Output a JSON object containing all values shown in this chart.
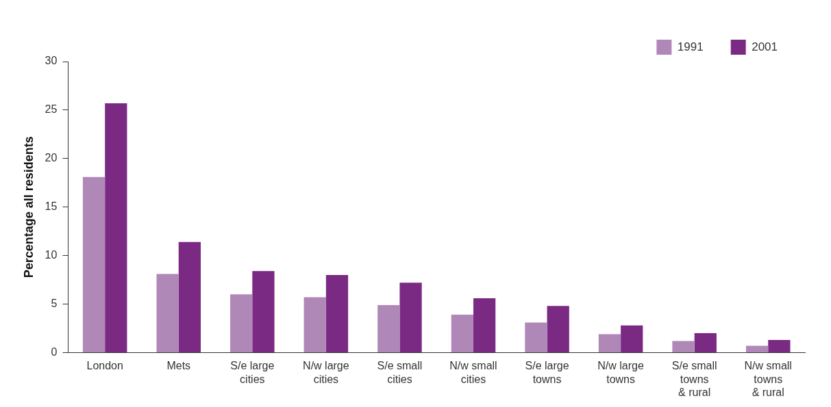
{
  "chart_data": {
    "type": "bar",
    "ylabel": "Percentage all residents",
    "categories": [
      "London",
      "Mets",
      "S/e large cities",
      "N/w large cities",
      "S/e small cities",
      "N/w small cities",
      "S/e large towns",
      "N/w large towns",
      "S/e small towns & rural",
      "N/w small towns & rural"
    ],
    "series": [
      {
        "name": "1991",
        "color": "#b088b8",
        "values": [
          18.1,
          8.1,
          6.0,
          5.7,
          4.9,
          3.9,
          3.1,
          1.9,
          1.2,
          0.7
        ]
      },
      {
        "name": "2001",
        "color": "#7b2a84",
        "values": [
          25.7,
          11.4,
          8.4,
          8.0,
          7.2,
          5.6,
          4.8,
          2.8,
          2.0,
          1.3
        ]
      }
    ],
    "ylim": [
      0,
      30
    ],
    "yticks": [
      0,
      5,
      10,
      15,
      20,
      25,
      30
    ],
    "grid": false,
    "legend": "top right"
  }
}
